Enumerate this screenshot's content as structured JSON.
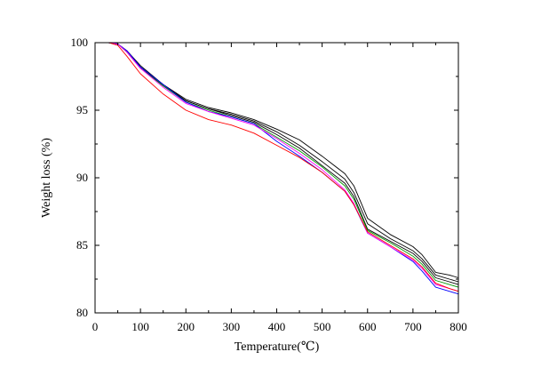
{
  "chart_data": {
    "type": "line",
    "title": "",
    "xlabel": "Temperature(℃)",
    "ylabel": "Weight loss (%)",
    "xlim": [
      0,
      800
    ],
    "ylim": [
      80,
      100
    ],
    "xticks": [
      0,
      100,
      200,
      300,
      400,
      500,
      600,
      700,
      800
    ],
    "yticks": [
      80,
      85,
      90,
      95,
      100
    ],
    "grid": false,
    "legend": "none",
    "series": [
      {
        "color": "#000000",
        "x": [
          30,
          50,
          70,
          100,
          150,
          200,
          250,
          300,
          350,
          400,
          450,
          500,
          550,
          570,
          600,
          650,
          700,
          720,
          750,
          780,
          800
        ],
        "y": [
          100,
          99.9,
          99.4,
          98.3,
          96.9,
          95.8,
          95.2,
          94.8,
          94.3,
          93.6,
          92.8,
          91.6,
          90.3,
          89.4,
          87.0,
          85.8,
          84.9,
          84.3,
          83.0,
          82.8,
          82.6
        ]
      },
      {
        "color": "#000000",
        "x": [
          30,
          50,
          70,
          100,
          150,
          200,
          250,
          300,
          350,
          400,
          450,
          500,
          550,
          570,
          600,
          650,
          700,
          720,
          750,
          780,
          800
        ],
        "y": [
          100,
          99.9,
          99.4,
          98.2,
          96.9,
          95.7,
          95.1,
          94.7,
          94.2,
          93.4,
          92.4,
          91.2,
          89.9,
          88.9,
          86.6,
          85.5,
          84.6,
          84.0,
          82.8,
          82.5,
          82.3
        ]
      },
      {
        "color": "#000000",
        "x": [
          30,
          50,
          70,
          100,
          150,
          200,
          250,
          300,
          350,
          400,
          450,
          500,
          550,
          570,
          600,
          650,
          700,
          720,
          750,
          780,
          800
        ],
        "y": [
          100,
          99.9,
          99.3,
          98.2,
          96.8,
          95.7,
          95.1,
          94.6,
          94.1,
          93.2,
          92.2,
          90.9,
          89.6,
          88.6,
          86.2,
          85.3,
          84.4,
          83.8,
          82.6,
          82.3,
          82.1
        ]
      },
      {
        "color": "#009900",
        "x": [
          30,
          50,
          70,
          100,
          150,
          200,
          250,
          300,
          350,
          400,
          450,
          500,
          550,
          570,
          600,
          650,
          700,
          720,
          750,
          780,
          800
        ],
        "y": [
          100,
          99.9,
          99.3,
          98.1,
          96.8,
          95.6,
          95.0,
          94.5,
          94.0,
          93.0,
          92.0,
          90.8,
          89.4,
          88.4,
          86.1,
          85.2,
          84.2,
          83.6,
          82.4,
          82.1,
          81.9
        ]
      },
      {
        "color": "#0000ff",
        "x": [
          30,
          50,
          70,
          100,
          150,
          200,
          250,
          300,
          350,
          400,
          450,
          500,
          550,
          570,
          600,
          650,
          700,
          720,
          750,
          780,
          800
        ],
        "y": [
          100,
          99.9,
          99.4,
          98.2,
          96.9,
          95.6,
          94.9,
          94.5,
          94.0,
          92.7,
          91.6,
          90.4,
          89.0,
          88.0,
          85.9,
          84.9,
          83.8,
          83.1,
          81.9,
          81.6,
          81.4
        ]
      },
      {
        "color": "#ff00ff",
        "x": [
          30,
          50,
          70,
          100,
          150,
          200,
          250,
          300,
          350,
          400,
          450,
          500,
          550,
          570,
          600,
          650,
          700,
          720,
          750,
          780,
          800
        ],
        "y": [
          100,
          99.9,
          99.3,
          98.1,
          96.7,
          95.5,
          94.9,
          94.4,
          93.9,
          92.9,
          91.8,
          90.6,
          89.1,
          88.1,
          85.9,
          84.9,
          83.9,
          83.3,
          82.1,
          81.8,
          81.6
        ]
      },
      {
        "color": "#ff0000",
        "x": [
          30,
          50,
          70,
          100,
          150,
          200,
          250,
          300,
          350,
          400,
          450,
          500,
          550,
          570,
          600,
          650,
          700,
          720,
          750,
          780,
          800
        ],
        "y": [
          100,
          99.8,
          99.0,
          97.7,
          96.2,
          95.0,
          94.3,
          93.9,
          93.3,
          92.4,
          91.5,
          90.4,
          89.0,
          88.0,
          86.0,
          85.0,
          84.0,
          83.4,
          82.2,
          81.8,
          81.6
        ]
      }
    ]
  }
}
